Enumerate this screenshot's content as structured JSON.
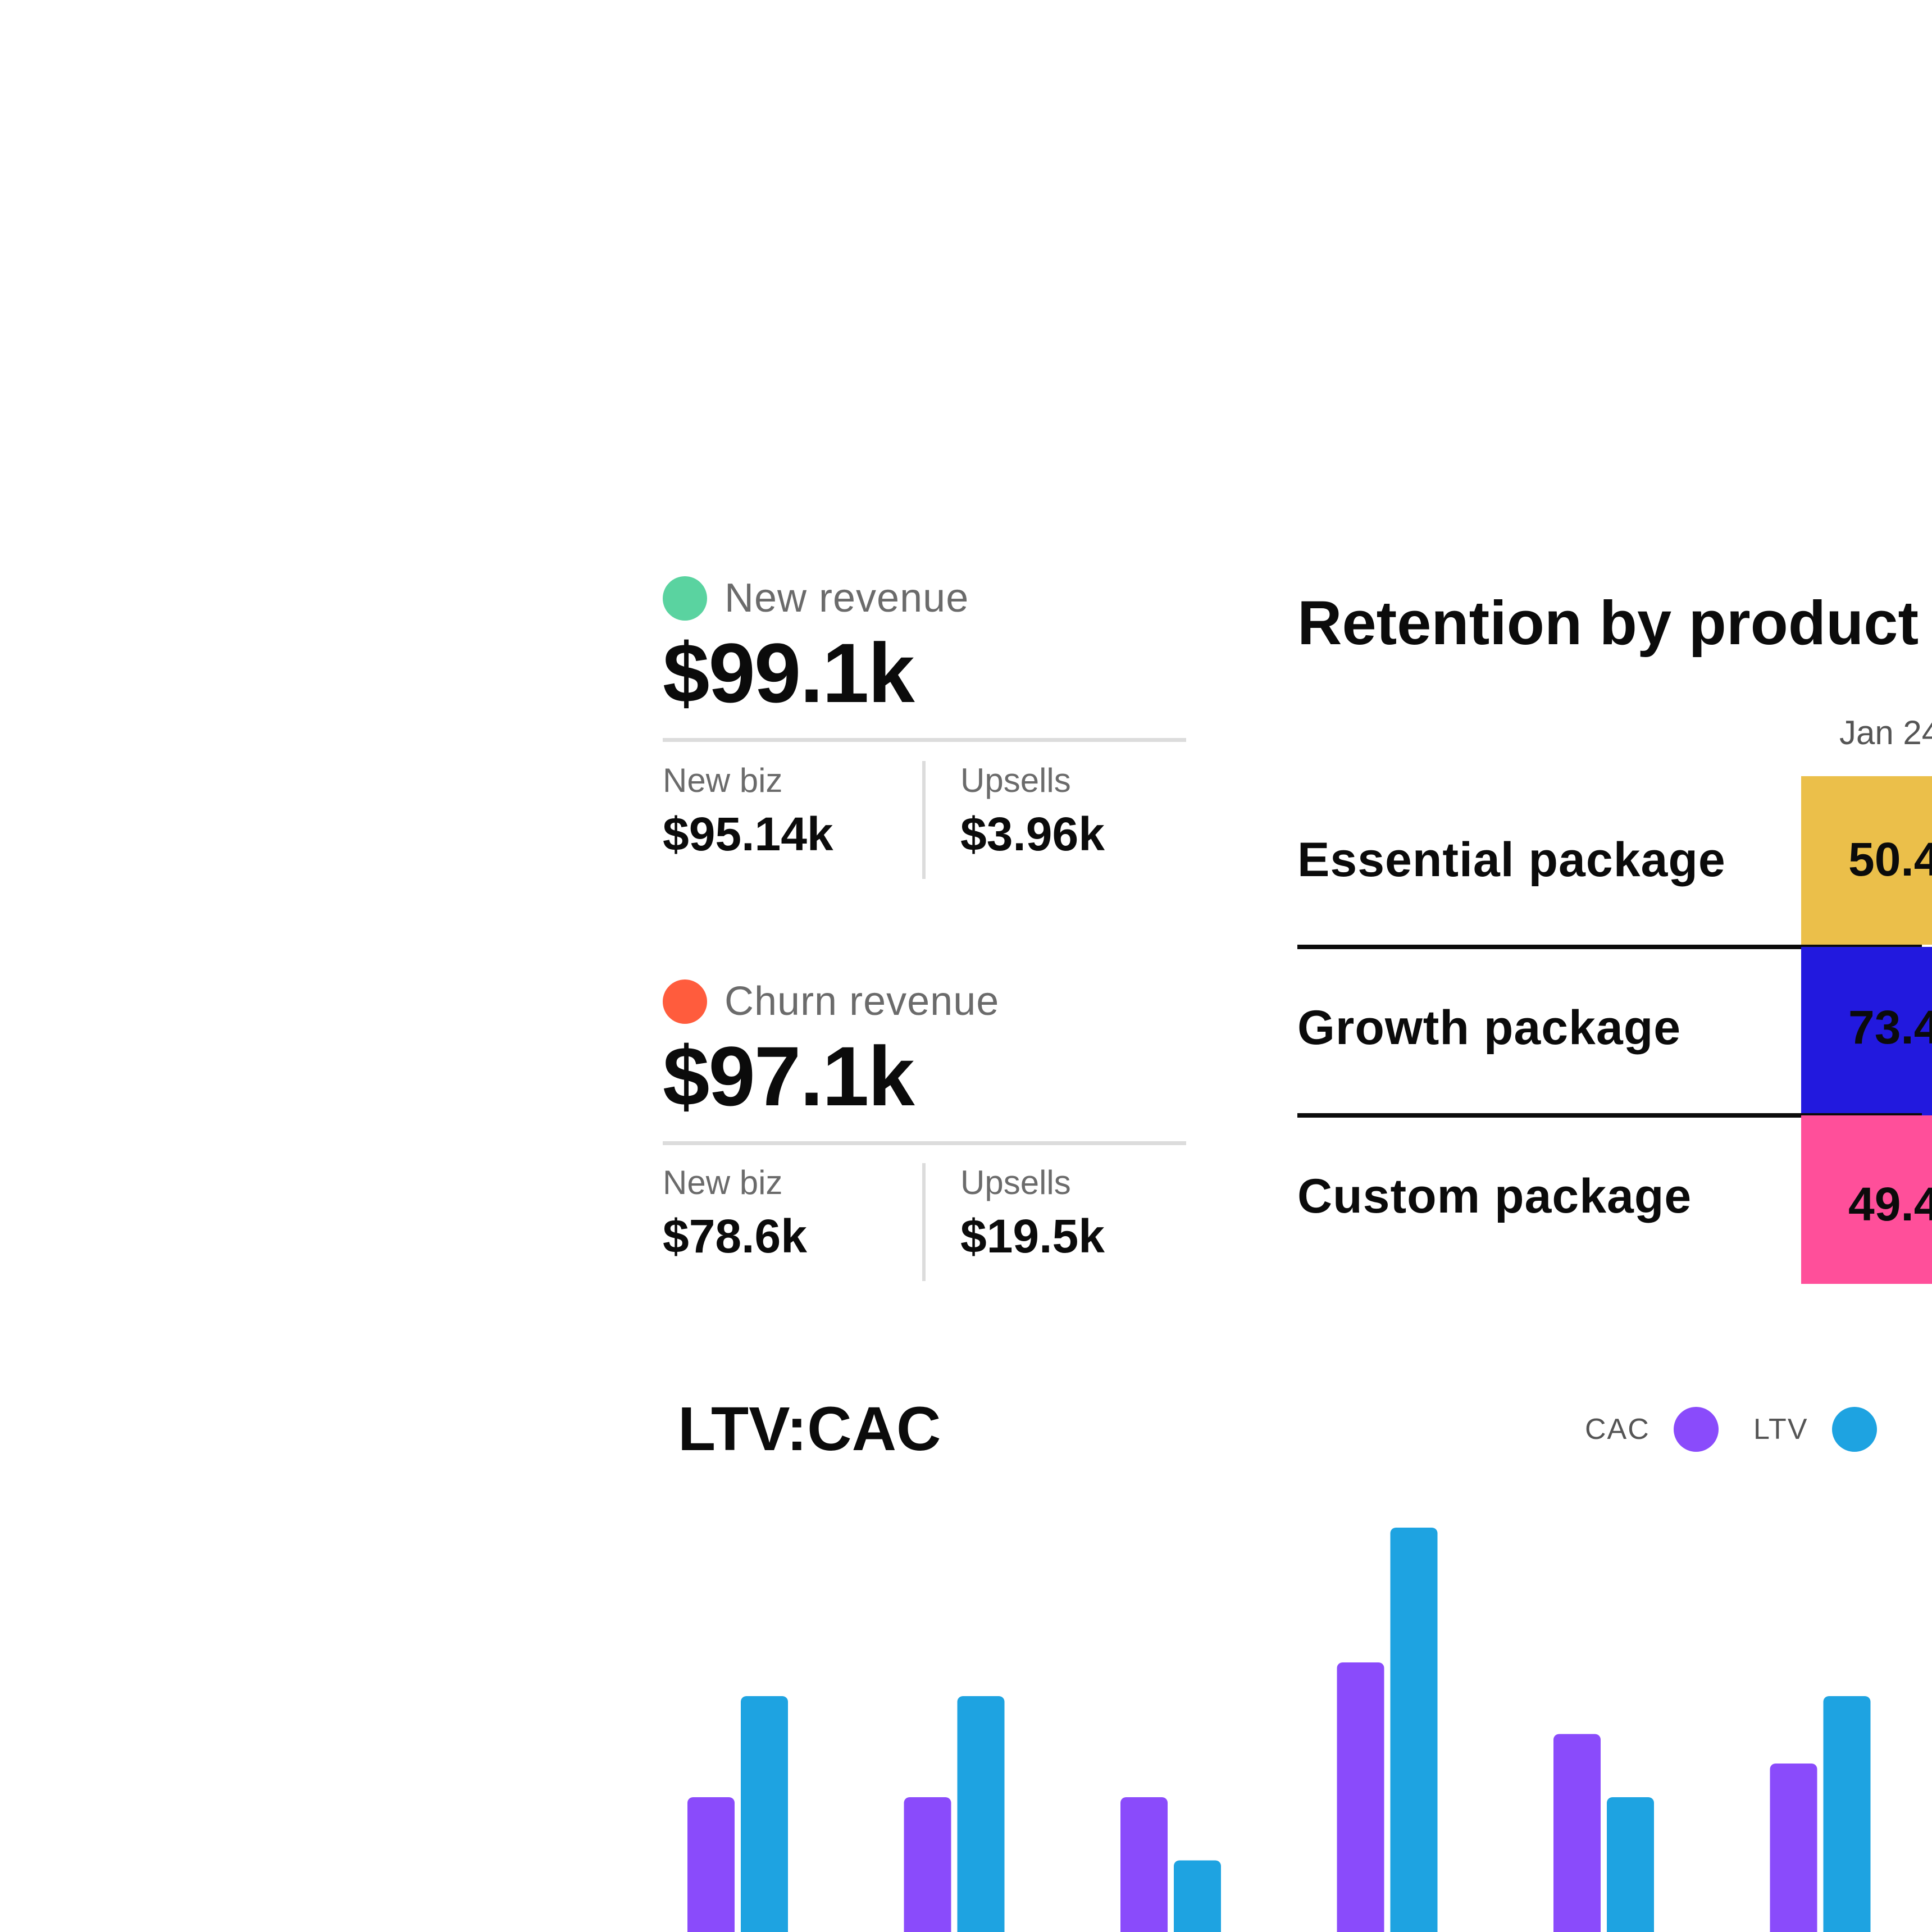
{
  "new_revenue": {
    "label": "New revenue",
    "color": "#5ad3a0",
    "value": "$99.1k",
    "new_biz_label": "New biz",
    "new_biz_value": "$95.14k",
    "upsells_label": "Upsells",
    "upsells_value": "$3.96k"
  },
  "churn_revenue": {
    "label": "Churn revenue",
    "color": "#ff5c3d",
    "value": "$97.1k",
    "new_biz_label": "New biz",
    "new_biz_value": "$78.6k",
    "upsells_label": "Upsells",
    "upsells_value": "$19.5k"
  },
  "retention": {
    "title": "Retention by product",
    "column_header": "Jan 24",
    "rows": [
      {
        "label": "Essential package",
        "value": "50.4",
        "color": "#ebbf4a"
      },
      {
        "label": "Growth package",
        "value": "73.4",
        "color": "#2219de"
      },
      {
        "label": "Custom package",
        "value": "49.4",
        "color": "#ff4f9a"
      }
    ]
  },
  "ltv_cac": {
    "title": "LTV:CAC",
    "legend": [
      {
        "label": "CAC",
        "color": "#8a4bfb"
      },
      {
        "label": "LTV",
        "color": "#1ea3e1"
      }
    ]
  },
  "chart_data": {
    "type": "bar",
    "title": "LTV:CAC",
    "categories": [
      "",
      "",
      "",
      "",
      "",
      ""
    ],
    "series": [
      {
        "name": "CAC",
        "color": "#8a4bfb",
        "values": [
          40,
          40,
          40,
          72,
          55,
          48
        ]
      },
      {
        "name": "LTV",
        "color": "#1ea3e1",
        "values": [
          64,
          64,
          25,
          104,
          40,
          64
        ]
      }
    ],
    "ylim": [
      0,
      130
    ],
    "grid": false,
    "legend": "top-right"
  }
}
